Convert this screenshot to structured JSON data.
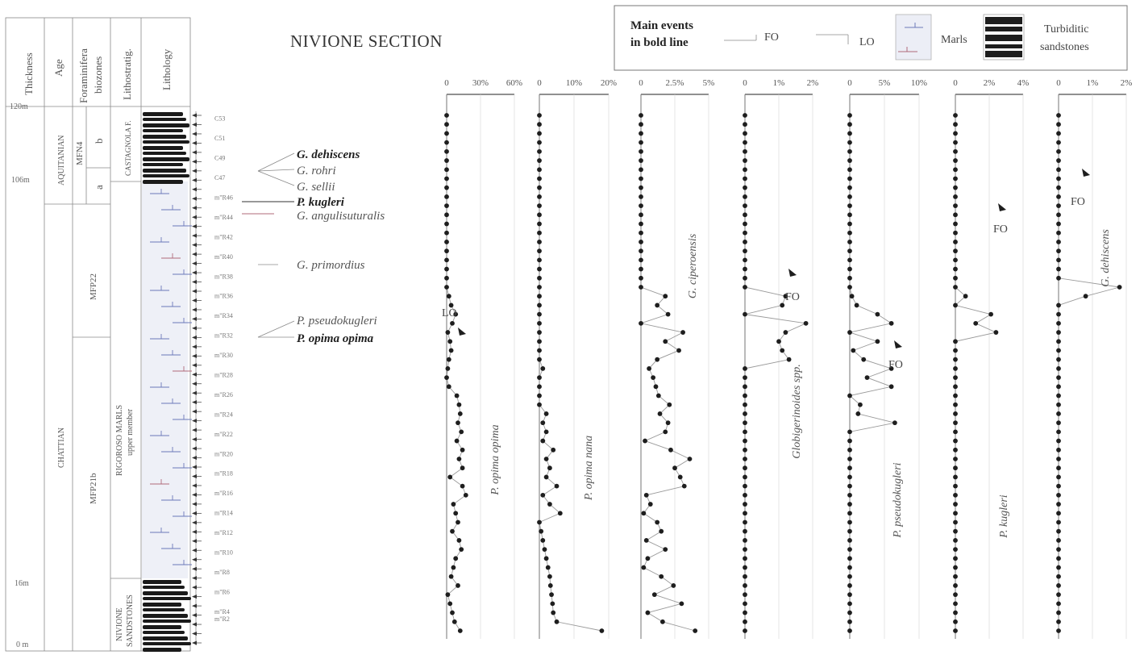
{
  "title": "NIVIONE SECTION",
  "legend": {
    "main_events_line1": "Main events",
    "main_events_line2": "in bold line",
    "fo": "FO",
    "lo": "LO",
    "marls": "Marls",
    "turbiditic_line1": "Turbiditic",
    "turbiditic_line2": "sandstones"
  },
  "column_headers": {
    "thickness": "Thickness",
    "age": "Age",
    "foraminifera_line1": "Foraminifera",
    "foraminifera_line2": "biozones",
    "lithostratig": "Lithostratig.",
    "lithology": "Lithology"
  },
  "thickness_ticks": [
    "120m",
    "106m",
    "16m",
    "0 m"
  ],
  "ages": [
    "AQUITANIAN",
    "CHATTIAN"
  ],
  "biozones": [
    "MFN4",
    "b",
    "a",
    "MFP22",
    "MFP21b"
  ],
  "lithostrat_units": {
    "castagnola": "CASTAGNOLA F.",
    "rigoroso_line1": "RIGOROSO MARLS",
    "rigoroso_line2": "upper member",
    "nivione_line1": "NIVIONE",
    "nivione_line2": "SANDSTONES"
  },
  "samples": [
    "C53",
    "C51",
    "C49",
    "C47",
    "m\"R46",
    "m\"R44",
    "m\"R42",
    "m\"R40",
    "m\"R38",
    "m\"R36",
    "m\"R34",
    "m\"R32",
    "m\"R30",
    "m\"R28",
    "m\"R26",
    "m\"R24",
    "m\"R22",
    "m\"R20",
    "m\"R18",
    "m\"R16",
    "m\"R14",
    "m\"R12",
    "m\"R10",
    "m\"R8",
    "m\"R6",
    "m\"R4",
    "m\"R2"
  ],
  "events": [
    {
      "name": "G. dehiscens",
      "bold": true
    },
    {
      "name": "G. rohri",
      "bold": false
    },
    {
      "name": "G. sellii",
      "bold": false
    },
    {
      "name": "P. kugleri",
      "bold": true
    },
    {
      "name": "G. angulisuturalis",
      "bold": false
    },
    {
      "name": "G. primordius",
      "bold": false
    },
    {
      "name": "P. pseudokugleri",
      "bold": false
    },
    {
      "name": "P. opima opima",
      "bold": true
    }
  ],
  "chart_data": {
    "type": "line",
    "y_axis": "sample level (top to bottom)",
    "panels": [
      {
        "name": "P. opima opima",
        "xlim": [
          0,
          60
        ],
        "ticks": [
          "0",
          "30%",
          "60%"
        ],
        "values": [
          0,
          0,
          0,
          0,
          0,
          0,
          0,
          0,
          0,
          0,
          0,
          0,
          0,
          0,
          0,
          0,
          0,
          0,
          0,
          0,
          2,
          4,
          8,
          5,
          1,
          3,
          4,
          2,
          1,
          0,
          2,
          9,
          11,
          12,
          10,
          13,
          9,
          14,
          11,
          14,
          3,
          14,
          17,
          6,
          8,
          10,
          5,
          11,
          13,
          8,
          6,
          4,
          10,
          1,
          3,
          5,
          7,
          12
        ],
        "annotations": [
          {
            "text": "LO"
          }
        ]
      },
      {
        "name": "P. opima nana",
        "xlim": [
          0,
          20
        ],
        "ticks": [
          "0",
          "10%",
          "20%"
        ],
        "values": [
          0,
          0,
          0,
          0,
          0,
          0,
          0,
          0,
          0,
          0,
          0,
          0,
          0,
          0,
          0,
          0,
          0,
          0,
          0,
          0,
          0,
          0,
          0,
          0,
          0,
          0,
          0,
          0,
          1,
          0,
          0,
          0,
          0,
          2,
          1,
          2,
          1,
          4,
          2,
          3,
          2,
          5,
          1,
          3,
          6,
          0,
          0.5,
          1,
          1.5,
          2,
          2.5,
          3,
          3.2,
          3.5,
          3.8,
          4,
          5,
          18
        ]
      },
      {
        "name": "G. ciperoensis",
        "xlim": [
          0,
          5
        ],
        "ticks": [
          "0",
          "2.5%",
          "5%"
        ],
        "values": [
          0,
          0,
          0,
          0,
          0,
          0,
          0,
          0,
          0,
          0,
          0,
          0,
          0,
          0,
          0,
          0,
          0,
          0,
          0,
          0,
          1.8,
          1.2,
          2.0,
          0,
          3.1,
          1.8,
          2.8,
          1.2,
          0.6,
          0.9,
          1.1,
          1.3,
          2.1,
          1.4,
          2.0,
          1.8,
          0.3,
          2.2,
          3.6,
          2.5,
          2.9,
          3.2,
          0.4,
          0.7,
          0.2,
          1.2,
          1.5,
          0.4,
          1.8,
          0.5,
          0.2,
          1.5,
          2.4,
          1.0,
          3.0,
          0.5,
          1.6,
          4.0
        ]
      },
      {
        "name": "Globigerinoides spp.",
        "xlim": [
          0,
          2
        ],
        "ticks": [
          "0",
          "1%",
          "2%"
        ],
        "values": [
          0,
          0,
          0,
          0,
          0,
          0,
          0,
          0,
          0,
          0,
          0,
          0,
          0,
          0,
          0,
          0,
          0,
          0,
          0,
          0,
          1.2,
          1.1,
          0,
          1.8,
          1.2,
          1.0,
          1.1,
          1.3,
          0,
          0,
          0,
          0,
          0,
          0,
          0,
          0,
          0,
          0,
          0,
          0,
          0,
          0,
          0,
          0,
          0,
          0,
          0,
          0,
          0,
          0,
          0,
          0,
          0,
          0,
          0,
          0,
          0,
          0
        ]
      },
      {
        "name": "P. pseudokugleri",
        "xlim": [
          0,
          10
        ],
        "ticks": [
          "0",
          "5%",
          "10%"
        ],
        "values": [
          0,
          0,
          0,
          0,
          0,
          0,
          0,
          0,
          0,
          0,
          0,
          0,
          0,
          0,
          0,
          0,
          0,
          0,
          0,
          0,
          0.3,
          1,
          4,
          6,
          0,
          4,
          0.5,
          2,
          6,
          2.5,
          6,
          0,
          1.5,
          1.2,
          6.5,
          0,
          0,
          0,
          0,
          0,
          0,
          0,
          0,
          0,
          0,
          0,
          0,
          0,
          0,
          0,
          0,
          0,
          0,
          0,
          0,
          0,
          0,
          0
        ],
        "annotations": [
          {
            "text": "FO"
          }
        ]
      },
      {
        "name": "P. kugleri",
        "xlim": [
          0,
          4
        ],
        "ticks": [
          "0",
          "2%",
          "4%"
        ],
        "values": [
          0,
          0,
          0,
          0,
          0,
          0,
          0,
          0,
          0,
          0,
          0,
          0,
          0,
          0,
          0,
          0,
          0,
          0,
          0,
          0,
          0.6,
          0,
          2.1,
          1.2,
          2.4,
          0,
          0,
          0,
          0,
          0,
          0,
          0,
          0,
          0,
          0,
          0,
          0,
          0,
          0,
          0,
          0,
          0,
          0,
          0,
          0,
          0,
          0,
          0,
          0,
          0,
          0,
          0,
          0,
          0,
          0,
          0,
          0,
          0
        ],
        "annotations": [
          {
            "text": "FO"
          }
        ]
      },
      {
        "name": "G. dehiscens",
        "xlim": [
          0,
          2
        ],
        "ticks": [
          "0",
          "1%",
          "2%"
        ],
        "values": [
          0,
          0,
          0,
          0,
          0,
          0,
          0,
          0,
          0,
          0,
          0,
          0,
          0,
          0,
          0,
          0,
          0,
          0,
          0,
          1.8,
          0.8,
          0,
          0,
          0,
          0,
          0,
          0,
          0,
          0,
          0,
          0,
          0,
          0,
          0,
          0,
          0,
          0,
          0,
          0,
          0,
          0,
          0,
          0,
          0,
          0,
          0,
          0,
          0,
          0,
          0,
          0,
          0,
          0,
          0,
          0,
          0,
          0,
          0
        ],
        "annotations": [
          {
            "text": "FO"
          }
        ]
      }
    ]
  }
}
